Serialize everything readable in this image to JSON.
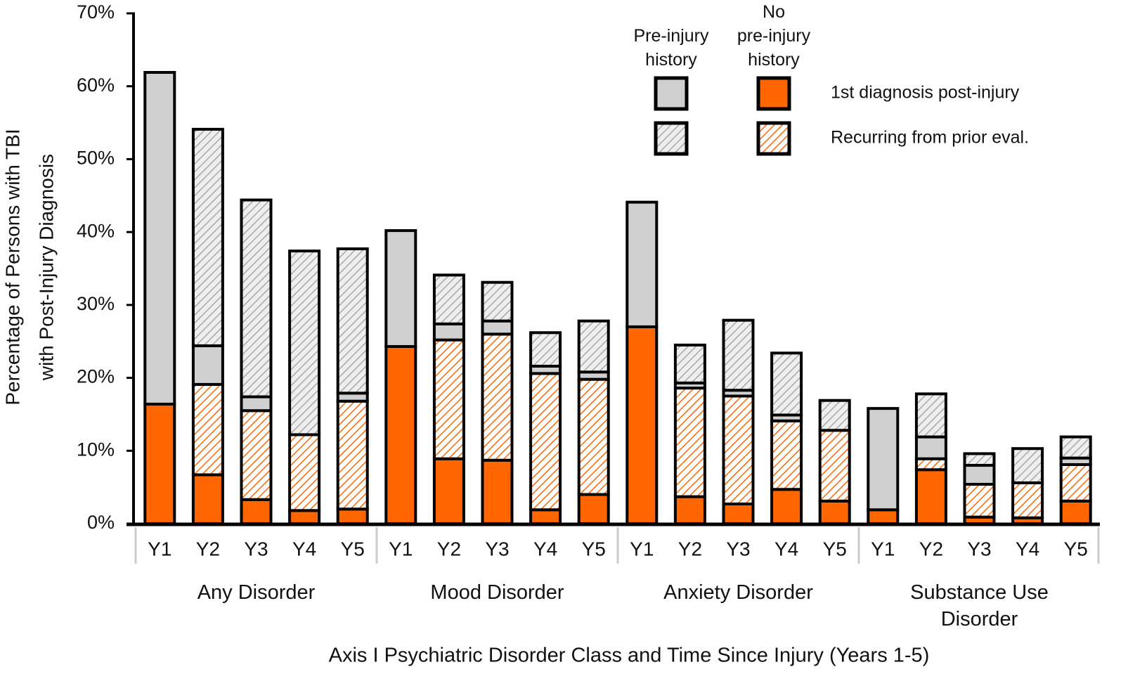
{
  "chart_data": {
    "type": "stacked_bar",
    "xlabel": "Axis I Psychiatric Disorder Class and Time Since Injury (Years 1-5)",
    "ylabel": [
      "Percentage of Persons with TBI",
      "with Post-Injury Diagnosis"
    ],
    "groups": [
      "Any Disorder",
      "Mood Disorder",
      "Anxiety Disorder",
      "Substance Use\nDisorder"
    ],
    "categories": [
      "Y1",
      "Y2",
      "Y3",
      "Y4",
      "Y5",
      "Y1",
      "Y2",
      "Y3",
      "Y4",
      "Y5",
      "Y1",
      "Y2",
      "Y3",
      "Y4",
      "Y5",
      "Y1",
      "Y2",
      "Y3",
      "Y4",
      "Y5"
    ],
    "legend": {
      "columns": [
        "Pre-injury\nhistory",
        "No\npre-injury\nhistory"
      ],
      "rows": [
        "1st diagnosis post-injury",
        "Recurring from prior eval."
      ]
    },
    "series": [
      {
        "legend_column": 1,
        "legend_row": 0,
        "color": "#ff6600",
        "hatch": false,
        "values": [
          16.4,
          6.7,
          3.3,
          1.8,
          2.0,
          24.3,
          8.9,
          8.7,
          1.9,
          4.0,
          27.0,
          3.7,
          2.7,
          4.7,
          3.1,
          1.9,
          7.4,
          0.9,
          0.8,
          3.1
        ]
      },
      {
        "legend_column": 1,
        "legend_row": 1,
        "color": "#ff6600",
        "hatch": true,
        "values": [
          0,
          12.4,
          12.2,
          10.4,
          14.8,
          0,
          16.3,
          17.3,
          18.7,
          15.8,
          0,
          14.9,
          14.8,
          9.4,
          9.7,
          0,
          1.5,
          4.5,
          4.8,
          5.0
        ]
      },
      {
        "legend_column": 0,
        "legend_row": 0,
        "color": "#d0d0d0",
        "hatch": false,
        "values": [
          45.5,
          5.3,
          1.9,
          0,
          1.1,
          15.9,
          2.2,
          1.8,
          1.0,
          1.0,
          17.1,
          0.7,
          0.8,
          0.8,
          0,
          13.9,
          3.0,
          2.6,
          0,
          0.9
        ]
      },
      {
        "legend_column": 0,
        "legend_row": 1,
        "color": "#d0d0d0",
        "hatch": true,
        "values": [
          0,
          29.7,
          27.0,
          25.2,
          19.8,
          0,
          6.7,
          5.3,
          4.6,
          7.0,
          0,
          5.2,
          9.6,
          8.5,
          4.1,
          0,
          5.9,
          1.6,
          4.7,
          2.9
        ]
      }
    ],
    "ylim": [
      0,
      70
    ],
    "yticks": [
      {
        "value": 0,
        "label": "0%"
      },
      {
        "value": 10,
        "label": "10%"
      },
      {
        "value": 20,
        "label": "20%"
      },
      {
        "value": 30,
        "label": "30%"
      },
      {
        "value": 40,
        "label": "40%"
      },
      {
        "value": 50,
        "label": "50%"
      },
      {
        "value": 60,
        "label": "60%"
      },
      {
        "value": 70,
        "label": "70%"
      }
    ]
  }
}
